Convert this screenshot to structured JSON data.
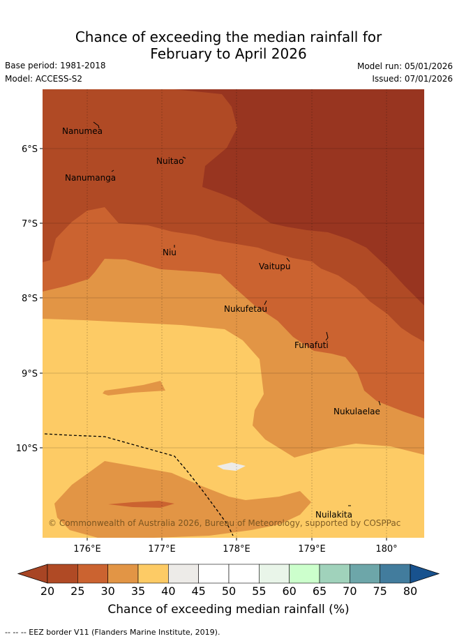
{
  "title_line1": "Chance of exceeding the median rainfall for",
  "title_line2": "February to April 2026",
  "base_period": "Base period: 1981-2018",
  "model": "Model: ACCESS-S2",
  "model_run": "Model run: 05/01/2026",
  "issued": "Issued: 07/01/2026",
  "copyright": "© Commonwealth of Australia 2026, Bureau of Meteorology, supported by COSPPac",
  "axis": {
    "lat_labels": [
      "6°S",
      "7°S",
      "8°S",
      "9°S",
      "10°S"
    ],
    "lon_labels": [
      "176°E",
      "177°E",
      "178°E",
      "179°E",
      "180°"
    ]
  },
  "places": [
    {
      "name": "Nanumea"
    },
    {
      "name": "Nuitao"
    },
    {
      "name": "Nanumanga"
    },
    {
      "name": "Niu"
    },
    {
      "name": "Vaitupu"
    },
    {
      "name": "Nukufetau"
    },
    {
      "name": "Funafuti"
    },
    {
      "name": "Nukulaelae"
    },
    {
      "name": "Nuilakita"
    }
  ],
  "legend": {
    "title": "Chance of exceeding median rainfall (%)",
    "ticks": [
      "20",
      "25",
      "30",
      "35",
      "40",
      "45",
      "50",
      "55",
      "60",
      "65",
      "70",
      "75",
      "80"
    ],
    "colors": [
      "#a84524",
      "#b04a25",
      "#cb6330",
      "#e29545",
      "#fdcb65",
      "#edebe8",
      "#ffffff",
      "#ffffff",
      "#e9f5e9",
      "#ccffcc",
      "#a0d2bb",
      "#6da6a9",
      "#427c9d",
      "#18528e"
    ]
  },
  "eez_note": "--  --  -- EEZ border V11 (Flanders Marine Institute, 2019)."
}
